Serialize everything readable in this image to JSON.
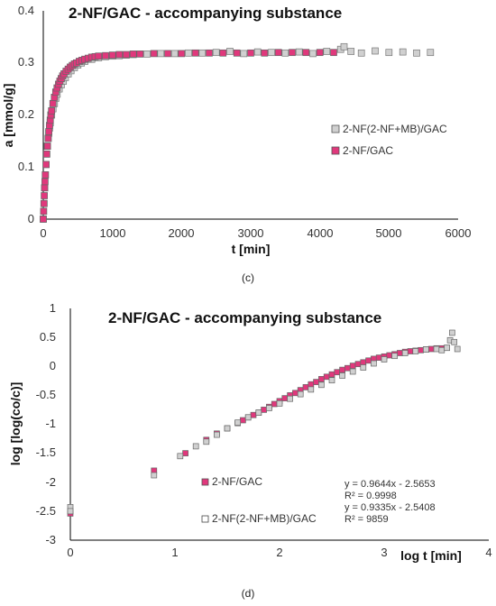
{
  "chart_data": [
    {
      "panel": "(c)",
      "type": "scatter",
      "title": "2-NF/GAC - accompanying substance",
      "xlabel": "t [min]",
      "ylabel": "a [mmol/g]",
      "xlim": [
        0,
        6000
      ],
      "ylim": [
        0,
        0.4
      ],
      "xticks": [
        "0",
        "1000",
        "2000",
        "3000",
        "4000",
        "5000",
        "6000"
      ],
      "yticks": [
        "0",
        "0.1",
        "0.2",
        "0.3",
        "0.4"
      ],
      "legend_position": "right",
      "grid": false,
      "series": [
        {
          "name": "2-NF(2-NF+MB)/GAC",
          "color": "#d0d0d0",
          "x": [
            0,
            10,
            20,
            30,
            40,
            50,
            60,
            70,
            80,
            90,
            100,
            120,
            140,
            160,
            180,
            200,
            230,
            260,
            290,
            320,
            360,
            400,
            450,
            500,
            550,
            600,
            700,
            800,
            900,
            1000,
            1100,
            1200,
            1300,
            1500,
            1700,
            1900,
            2100,
            2300,
            2500,
            2700,
            2900,
            3100,
            3300,
            3500,
            3700,
            3900,
            4100,
            4300,
            4350,
            4450,
            4600,
            4800,
            5000,
            5200,
            5400,
            5600
          ],
          "y": [
            0.0,
            0.03,
            0.06,
            0.085,
            0.105,
            0.125,
            0.14,
            0.155,
            0.165,
            0.175,
            0.185,
            0.2,
            0.212,
            0.222,
            0.232,
            0.24,
            0.25,
            0.258,
            0.265,
            0.272,
            0.279,
            0.285,
            0.291,
            0.296,
            0.3,
            0.303,
            0.307,
            0.31,
            0.312,
            0.313,
            0.314,
            0.315,
            0.316,
            0.317,
            0.318,
            0.318,
            0.319,
            0.319,
            0.32,
            0.322,
            0.318,
            0.321,
            0.32,
            0.319,
            0.321,
            0.318,
            0.322,
            0.326,
            0.331,
            0.322,
            0.319,
            0.323,
            0.32,
            0.321,
            0.319,
            0.32
          ]
        },
        {
          "name": "2-NF/GAC",
          "color": "#e0387c",
          "x": [
            0,
            5,
            10,
            15,
            20,
            25,
            30,
            40,
            50,
            60,
            70,
            80,
            90,
            100,
            110,
            120,
            140,
            160,
            180,
            200,
            220,
            240,
            260,
            280,
            300,
            330,
            360,
            390,
            420,
            450,
            480,
            520,
            560,
            600,
            650,
            700,
            750,
            800,
            900,
            1000,
            1100,
            1200,
            1300,
            1400,
            1600,
            1800,
            2000,
            2200,
            2400,
            2600,
            2800,
            3000,
            3200,
            3400,
            3600,
            3800,
            4000,
            4200
          ],
          "y": [
            0.0,
            0.015,
            0.03,
            0.045,
            0.06,
            0.072,
            0.085,
            0.105,
            0.125,
            0.14,
            0.155,
            0.168,
            0.18,
            0.19,
            0.2,
            0.208,
            0.222,
            0.234,
            0.244,
            0.252,
            0.259,
            0.265,
            0.27,
            0.275,
            0.279,
            0.284,
            0.288,
            0.292,
            0.295,
            0.298,
            0.3,
            0.303,
            0.305,
            0.307,
            0.309,
            0.311,
            0.312,
            0.313,
            0.314,
            0.315,
            0.316,
            0.316,
            0.317,
            0.317,
            0.318,
            0.318,
            0.318,
            0.319,
            0.319,
            0.319,
            0.319,
            0.319,
            0.319,
            0.32,
            0.32,
            0.32,
            0.32,
            0.32
          ]
        }
      ]
    },
    {
      "panel": "(d)",
      "type": "scatter",
      "title": "2-NF/GAC - accompanying substance",
      "xlabel": "log t [min]",
      "ylabel": "log [log(co/c)]",
      "xlim": [
        0,
        4
      ],
      "ylim": [
        -3,
        1
      ],
      "xticks": [
        "0",
        "1",
        "2",
        "3",
        "4"
      ],
      "yticks": [
        "1",
        "0.5",
        "0",
        "-0.5",
        "-1",
        "-1.5",
        "-2",
        "-2.5",
        "-3"
      ],
      "grid": false,
      "annotations": [
        "y = 0.9644x - 2.5653",
        "R² = 0.9998",
        "y = 0.9335x - 2.5408",
        "R² = 9859"
      ],
      "series": [
        {
          "name": "2-NF/GAC",
          "color": "#e0387c",
          "x": [
            0.0,
            0.8,
            1.1,
            1.3,
            1.4,
            1.5,
            1.6,
            1.65,
            1.7,
            1.75,
            1.8,
            1.85,
            1.9,
            1.95,
            2.0,
            2.05,
            2.1,
            2.15,
            2.2,
            2.25,
            2.3,
            2.35,
            2.4,
            2.45,
            2.5,
            2.55,
            2.6,
            2.65,
            2.7,
            2.75,
            2.8,
            2.85,
            2.9,
            2.95,
            3.0,
            3.05,
            3.1,
            3.15,
            3.2,
            3.25,
            3.3,
            3.35,
            3.4,
            3.45,
            3.5,
            3.55,
            3.6
          ],
          "y": [
            -2.54,
            -1.8,
            -1.5,
            -1.27,
            -1.16,
            -1.07,
            -0.98,
            -0.93,
            -0.88,
            -0.84,
            -0.8,
            -0.75,
            -0.7,
            -0.65,
            -0.6,
            -0.55,
            -0.5,
            -0.46,
            -0.41,
            -0.36,
            -0.31,
            -0.27,
            -0.22,
            -0.18,
            -0.14,
            -0.1,
            -0.06,
            -0.03,
            0.01,
            0.04,
            0.07,
            0.1,
            0.13,
            0.15,
            0.17,
            0.19,
            0.21,
            0.23,
            0.25,
            0.26,
            0.27,
            0.28,
            0.29,
            0.3,
            0.31,
            0.31,
            0.32
          ]
        },
        {
          "name": "2-NF(2-NF+MB)/GAC",
          "color": "#d0d0d0",
          "x": [
            0.0,
            0.0,
            0.8,
            1.05,
            1.2,
            1.3,
            1.4,
            1.5,
            1.6,
            1.7,
            1.8,
            1.9,
            2.0,
            2.1,
            2.2,
            2.3,
            2.4,
            2.5,
            2.6,
            2.7,
            2.8,
            2.9,
            3.0,
            3.1,
            3.2,
            3.3,
            3.4,
            3.5,
            3.55,
            3.6,
            3.63,
            3.65,
            3.67,
            3.7
          ],
          "y": [
            -2.43,
            -2.5,
            -1.88,
            -1.55,
            -1.38,
            -1.3,
            -1.18,
            -1.07,
            -0.97,
            -0.88,
            -0.8,
            -0.72,
            -0.64,
            -0.56,
            -0.48,
            -0.4,
            -0.32,
            -0.24,
            -0.16,
            -0.09,
            -0.02,
            0.05,
            0.12,
            0.18,
            0.23,
            0.26,
            0.29,
            0.3,
            0.28,
            0.32,
            0.45,
            0.58,
            0.42,
            0.3
          ]
        }
      ]
    }
  ],
  "captions": {
    "c": "(c)",
    "d": "(d)"
  }
}
